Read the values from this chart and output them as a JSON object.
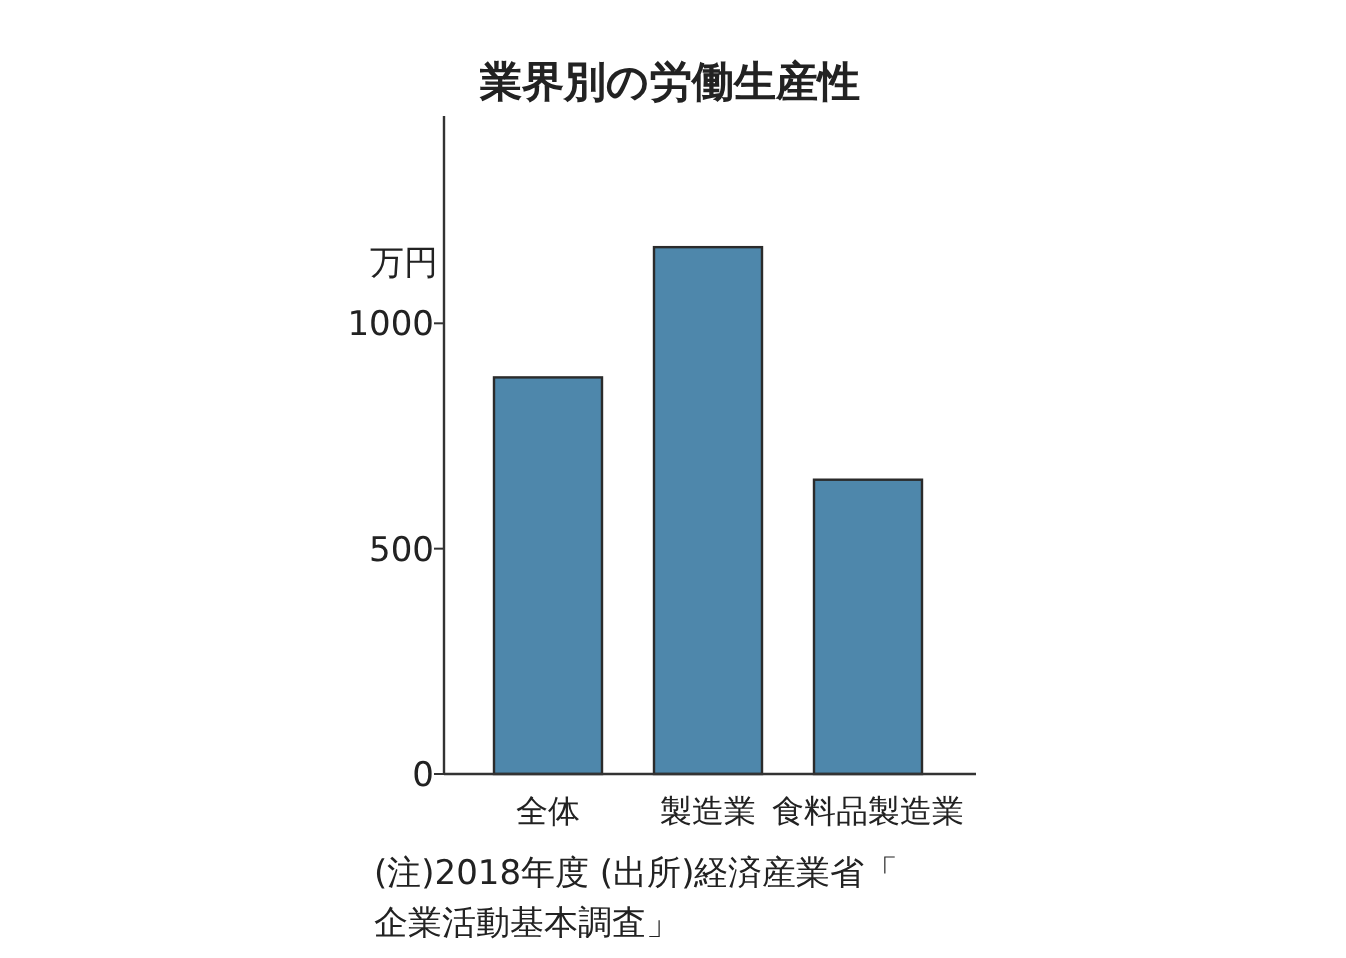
{
  "chart_data": {
    "type": "bar",
    "title": "業界別の労働生産性",
    "ylabel": "万円",
    "categories": [
      "全体",
      "製造業",
      "食料品製造業"
    ],
    "values": [
      880,
      1169,
      653
    ],
    "color": "#4e87ab",
    "ylim": [
      0,
      1460
    ],
    "yticks": [
      0,
      500,
      1000
    ],
    "annotations": [
      "(注)2018年度 (出所)経済産業省「企業活動基本調査」"
    ]
  }
}
